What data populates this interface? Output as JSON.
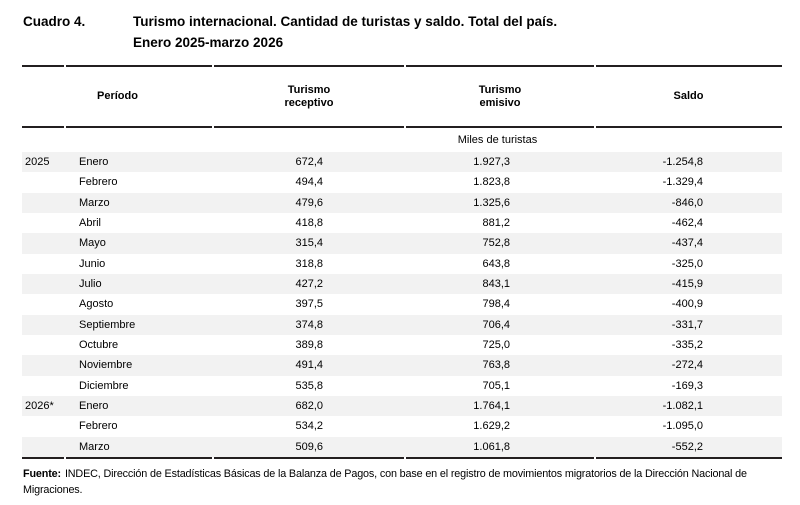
{
  "title": {
    "label": "Cuadro 4.",
    "text": "Turismo internacional. Cantidad de turistas y saldo. Total del país.",
    "subtitle": "Enero 2025-marzo 2026"
  },
  "table": {
    "columns": [
      "Período",
      "Turismo receptivo",
      "Turismo emisivo",
      "Saldo"
    ],
    "unit_note": "Miles de turistas",
    "rows": [
      {
        "year": "2025",
        "month": "Enero",
        "receptivo": "672,4",
        "emisivo": "1.927,3",
        "saldo": "-1.254,8"
      },
      {
        "year": "",
        "month": "Febrero",
        "receptivo": "494,4",
        "emisivo": "1.823,8",
        "saldo": "-1.329,4"
      },
      {
        "year": "",
        "month": "Marzo",
        "receptivo": "479,6",
        "emisivo": "1.325,6",
        "saldo": "-846,0"
      },
      {
        "year": "",
        "month": "Abril",
        "receptivo": "418,8",
        "emisivo": "881,2",
        "saldo": "-462,4"
      },
      {
        "year": "",
        "month": "Mayo",
        "receptivo": "315,4",
        "emisivo": "752,8",
        "saldo": "-437,4"
      },
      {
        "year": "",
        "month": "Junio",
        "receptivo": "318,8",
        "emisivo": "643,8",
        "saldo": "-325,0"
      },
      {
        "year": "",
        "month": "Julio",
        "receptivo": "427,2",
        "emisivo": "843,1",
        "saldo": "-415,9"
      },
      {
        "year": "",
        "month": "Agosto",
        "receptivo": "397,5",
        "emisivo": "798,4",
        "saldo": "-400,9"
      },
      {
        "year": "",
        "month": "Septiembre",
        "receptivo": "374,8",
        "emisivo": "706,4",
        "saldo": "-331,7"
      },
      {
        "year": "",
        "month": "Octubre",
        "receptivo": "389,8",
        "emisivo": "725,0",
        "saldo": "-335,2"
      },
      {
        "year": "",
        "month": "Noviembre",
        "receptivo": "491,4",
        "emisivo": "763,8",
        "saldo": "-272,4"
      },
      {
        "year": "",
        "month": "Diciembre",
        "receptivo": "535,8",
        "emisivo": "705,1",
        "saldo": "-169,3"
      },
      {
        "year": "2026*",
        "month": "Enero",
        "receptivo": "682,0",
        "emisivo": "1.764,1",
        "saldo": "-1.082,1"
      },
      {
        "year": "",
        "month": "Febrero",
        "receptivo": "534,2",
        "emisivo": "1.629,2",
        "saldo": "-1.095,0"
      },
      {
        "year": "",
        "month": "Marzo",
        "receptivo": "509,6",
        "emisivo": "1.061,8",
        "saldo": "-552,2"
      }
    ]
  },
  "footer": {
    "source_label": "Fuente:",
    "source_text": "INDEC, Dirección de Estadísticas Básicas de la Balanza de Pagos, con base en el registro de movimientos migratorios de la Dirección Nacional de Migraciones."
  },
  "colors": {
    "stripe": "#f2f2f2",
    "rule": "#231f20",
    "text": "#000000"
  }
}
